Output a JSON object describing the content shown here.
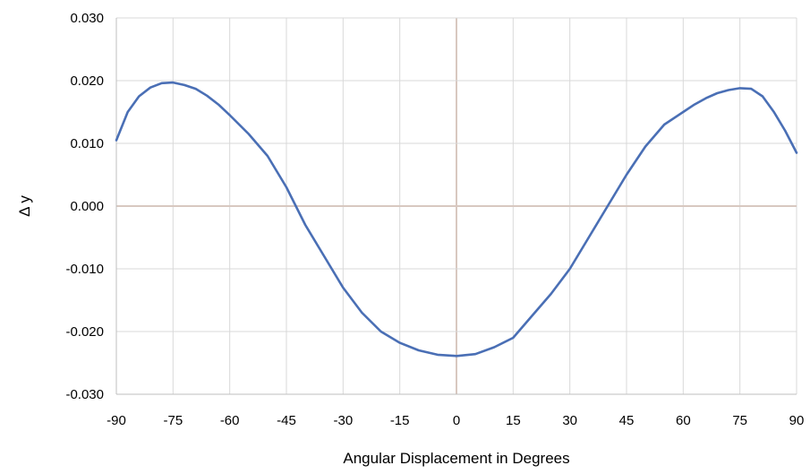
{
  "chart_data": {
    "type": "line",
    "title": "",
    "xlabel": "Angular Displacement in Degrees",
    "ylabel": "Δ y",
    "xlim": [
      -90,
      90
    ],
    "ylim": [
      -0.03,
      0.03
    ],
    "x_ticks": [
      "-90",
      "-75",
      "-60",
      "-45",
      "-30",
      "-15",
      "0",
      "15",
      "30",
      "45",
      "60",
      "75",
      "90"
    ],
    "y_ticks": [
      "0.030",
      "0.020",
      "0.010",
      "0.000",
      "-0.010",
      "-0.020",
      "-0.030"
    ],
    "grid": true,
    "colors": {
      "line": "#4a6fb5",
      "grid": "#d9d9d9",
      "zero_line": "#d8c8c0",
      "axis": "#bfbfbf"
    },
    "series": [
      {
        "x": [
          -90,
          -87,
          -84,
          -81,
          -78,
          -75,
          -72,
          -69,
          -66,
          -63,
          -60,
          -55,
          -50,
          -45,
          -40,
          -35,
          -30,
          -25,
          -20,
          -15,
          -10,
          -5,
          0,
          5,
          10,
          15,
          20,
          25,
          30,
          35,
          40,
          45,
          50,
          55,
          60,
          63,
          66,
          69,
          72,
          75,
          78,
          81,
          84,
          87,
          90
        ],
        "y": [
          0.0105,
          0.015,
          0.0175,
          0.0189,
          0.0196,
          0.0197,
          0.0193,
          0.0187,
          0.0176,
          0.0162,
          0.0145,
          0.0115,
          0.008,
          0.003,
          -0.003,
          -0.008,
          -0.013,
          -0.017,
          -0.02,
          -0.0218,
          -0.023,
          -0.0237,
          -0.0239,
          -0.0236,
          -0.0225,
          -0.021,
          -0.0175,
          -0.014,
          -0.01,
          -0.005,
          0.0,
          0.005,
          0.0095,
          0.013,
          0.015,
          0.0162,
          0.0172,
          0.018,
          0.0185,
          0.0188,
          0.0187,
          0.0175,
          0.015,
          0.012,
          0.0085
        ]
      }
    ]
  }
}
